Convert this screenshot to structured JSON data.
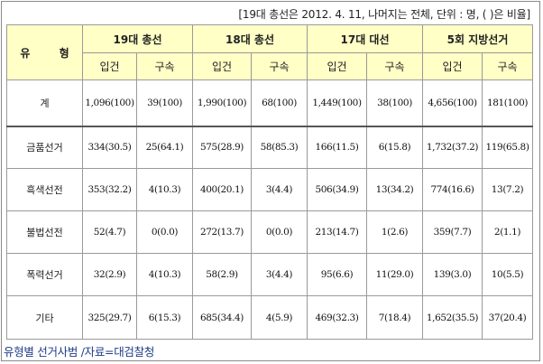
{
  "note": "[19대 총선은 2012. 4. 11, 나머지는 전체, 단위 : 명, ( )은 비율]",
  "table": {
    "type_header": "유 형",
    "elections": [
      "19대 총선",
      "18대 총선",
      "17대 대선",
      "5회 지방선거"
    ],
    "sub_headers": [
      "입건",
      "구속"
    ],
    "rows": [
      {
        "label": "계",
        "cells": [
          "1,096(100)",
          "39(100)",
          "1,990(100)",
          "68(100)",
          "1,449(100)",
          "38(100)",
          "4,656(100)",
          "181(100)"
        ]
      },
      {
        "label": "금품선거",
        "cells": [
          "334(30.5)",
          "25(64.1)",
          "575(28.9)",
          "58(85.3)",
          "166(11.5)",
          "6(15.8)",
          "1,732(37.2)",
          "119(65.8)"
        ]
      },
      {
        "label": "흑색선전",
        "cells": [
          "353(32.2)",
          "4(10.3)",
          "400(20.1)",
          "3(4.4)",
          "506(34.9)",
          "13(34.2)",
          "774(16.6)",
          "13(7.2)"
        ]
      },
      {
        "label": "불법선전",
        "cells": [
          "52(4.7)",
          "0(0.0)",
          "272(13.7)",
          "0(0.0)",
          "213(14.7)",
          "1(2.6)",
          "359(7.7)",
          "2(1.1)"
        ]
      },
      {
        "label": "폭력선거",
        "cells": [
          "32(2.9)",
          "4(10.3)",
          "58(2.9)",
          "3(4.4)",
          "95(6.6)",
          "11(29.0)",
          "139(3.0)",
          "10(5.5)"
        ]
      },
      {
        "label": "기타",
        "cells": [
          "325(29.7)",
          "6(15.3)",
          "685(34.4)",
          "4(5.9)",
          "469(32.3)",
          "7(18.4)",
          "1,652(35.5)",
          "37(20.4)"
        ]
      }
    ]
  },
  "caption": "유형별 선거사범 /자료=대검찰청",
  "colors": {
    "header_bg": "#ffffc6",
    "caption": "#1f3c87",
    "border": "#9a9a9a"
  }
}
